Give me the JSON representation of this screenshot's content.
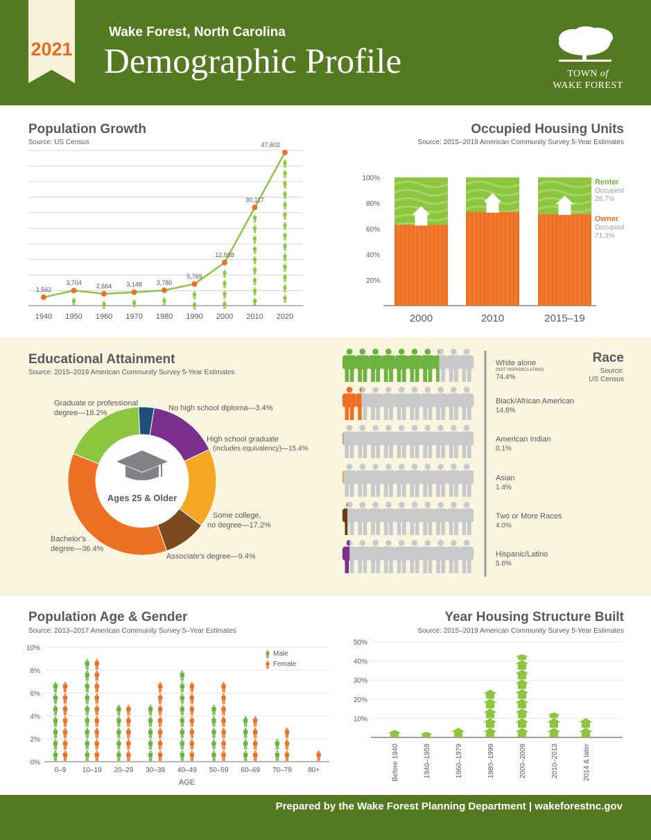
{
  "header": {
    "year": "2021",
    "location": "Wake Forest, North Carolina",
    "title": "Demographic Profile",
    "logo_line1": "TOWN",
    "logo_of": "of",
    "logo_line2": "WAKE FOREST"
  },
  "population_growth": {
    "title": "Population Growth",
    "source": "Source: US Census",
    "chart_data": {
      "type": "line",
      "categories": [
        "1940",
        "1950",
        "1960",
        "1970",
        "1980",
        "1990",
        "2000",
        "2010",
        "2020"
      ],
      "values": [
        1562,
        3704,
        2664,
        3148,
        3780,
        5769,
        12588,
        30117,
        47602
      ],
      "labels": [
        "1,562",
        "3,704",
        "2,664",
        "3,148",
        "3,780",
        "5,769",
        "12,588",
        "30,117",
        "47,602"
      ]
    }
  },
  "housing_units": {
    "title": "Occupied Housing Units",
    "source": "Source: 2015–2019 American Community Survey 5-Year Estimates",
    "chart_data": {
      "type": "bar",
      "categories": [
        "2000",
        "2010",
        "2015–19"
      ],
      "series": [
        {
          "name": "Owner",
          "values": [
            63,
            73,
            71.3
          ]
        },
        {
          "name": "Renter",
          "values": [
            37,
            27,
            28.7
          ]
        }
      ],
      "yticks": [
        "100%",
        "80%",
        "60%",
        "40%",
        "20%"
      ],
      "ylim": [
        0,
        100
      ]
    },
    "renter_label": "Renter",
    "renter_sub": "Occupied",
    "renter_pct": "28.7%",
    "owner_label": "Owner",
    "owner_sub": "Occupied",
    "owner_pct": "71.3%",
    "colors": {
      "owner": "#ee7023",
      "renter": "#8cc63f"
    }
  },
  "education": {
    "title": "Educational Attainment",
    "source": "Source: 2015–2019 American Community Survey 5-Year Estimates",
    "center_label": "Ages 25 & Older",
    "chart_data": {
      "type": "pie",
      "categories": [
        "No high school diploma",
        "High school graduate (includes equivalency)",
        "Some college, no degree",
        "Associate's degree",
        "Bachelor's degree",
        "Graduate or professional degree"
      ],
      "values": [
        3.4,
        15.4,
        17.2,
        9.4,
        36.4,
        18.2
      ],
      "colors": [
        "#1f4e79",
        "#7b2f8e",
        "#f5a623",
        "#7b4a1e",
        "#ee7023",
        "#8cc63f"
      ]
    },
    "labels": {
      "grad1": "Graduate or professional",
      "grad2": "degree—18.2%",
      "nohs": "No high school diploma—3.4%",
      "hs1": "High school graduate",
      "hs2": "(includes equivalency)—15.4%",
      "some1": "Some college,",
      "some2": "no degree—17.2%",
      "assoc": "Associate's degree—9.4%",
      "bach1": "Bachelor's",
      "bach2": "degree—36.4%"
    }
  },
  "race": {
    "title": "Race",
    "source1": "Source:",
    "source2": "US Census",
    "rows": [
      {
        "name": "White alone",
        "note": "(NOT HISPANIC/LATINO)",
        "pct": "74.4%",
        "value": 74.4,
        "color": "#6cb33f"
      },
      {
        "name": "Black/African American",
        "note": "",
        "pct": "14.8%",
        "value": 14.8,
        "color": "#ee7023"
      },
      {
        "name": "American Indian",
        "note": "",
        "pct": "0.1%",
        "value": 0.1,
        "color": "#9d9fa2"
      },
      {
        "name": "Asian",
        "note": "",
        "pct": "1.4%",
        "value": 1.4,
        "color": "#f5a623"
      },
      {
        "name": "Two or More Races",
        "note": "",
        "pct": "4.0%",
        "value": 4.0,
        "color": "#6b3a13"
      },
      {
        "name": "Hispanic/Latino",
        "note": "",
        "pct": "5.6%",
        "value": 5.6,
        "color": "#7b2f8e"
      }
    ]
  },
  "age_gender": {
    "title": "Population Age & Gender",
    "source": "Source: 2013–2017 American Community Survey 5–Year Estimates",
    "xlabel": "AGE",
    "legend_male": "Male",
    "legend_female": "Female",
    "yticks": [
      "10%",
      "8%",
      "6%",
      "4%",
      "2%",
      "0%"
    ],
    "chart_data": {
      "type": "bar",
      "categories": [
        "0–9",
        "10–19",
        "20–29",
        "30–39",
        "40–49",
        "50–59",
        "60–69",
        "70–79",
        "80+"
      ],
      "series": [
        {
          "name": "Male",
          "values": [
            7.0,
            9.0,
            5.0,
            5.6,
            8.2,
            5.4,
            4.2,
            2.2,
            0.4
          ]
        },
        {
          "name": "Female",
          "values": [
            7.7,
            9.0,
            5.1,
            7.0,
            7.6,
            7.7,
            4.2,
            3.2,
            1.5
          ]
        }
      ],
      "ylim": [
        0,
        10
      ]
    }
  },
  "year_built": {
    "title": "Year Housing Structure Built",
    "source": "Source: 2015–2019 American Community Survey 5-Year Estimates",
    "yticks": [
      "50%",
      "40%",
      "30%",
      "20%",
      "10%"
    ],
    "chart_data": {
      "type": "bar",
      "categories": [
        "Before 1940",
        "1940–1959",
        "1960–1979",
        "1980–1999",
        "2000–2009",
        "2010–2013",
        "2014 & later"
      ],
      "values": [
        4,
        3,
        6,
        25,
        42,
        13,
        11
      ],
      "ylim": [
        0,
        50
      ]
    }
  },
  "footer": {
    "text": "Prepared by the Wake Forest Planning Department | wakeforestnc.gov"
  }
}
